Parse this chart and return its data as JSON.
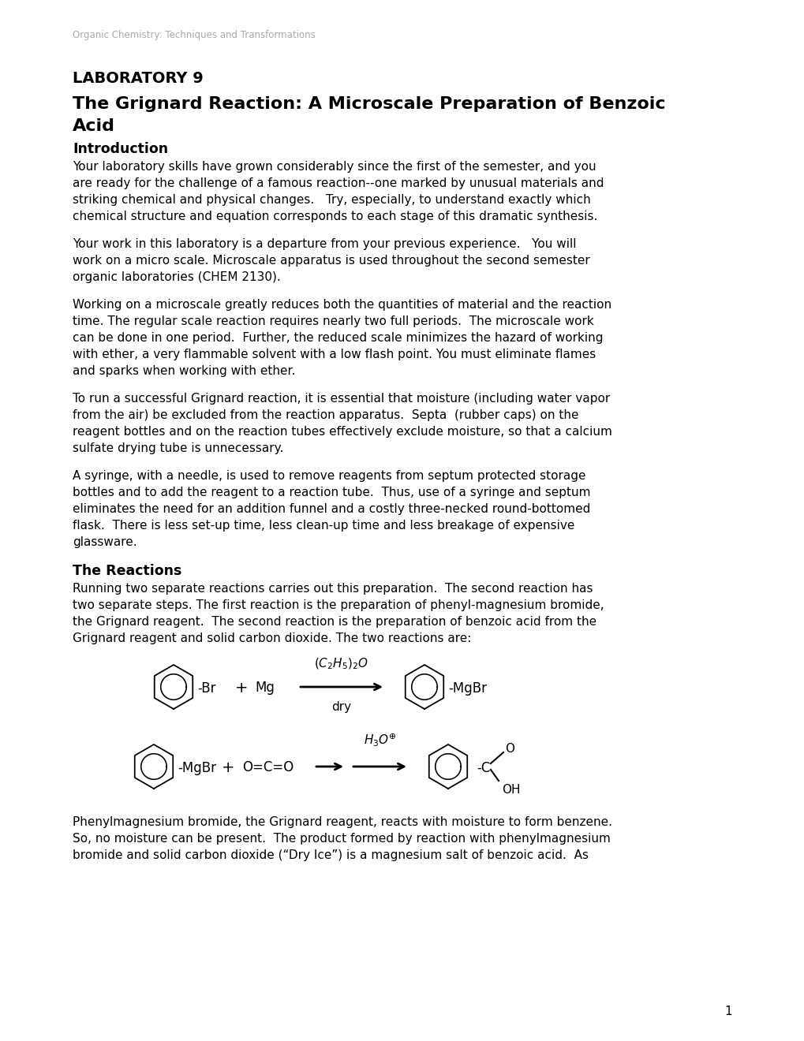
{
  "header_text": "Organic Chemistry: Techniques and Transformations",
  "lab_number": "LABORATORY 9",
  "section1_heading": "Introduction",
  "para1": "Your laboratory skills have grown considerably since the first of the semester, and you are ready for the challenge of a famous reaction--one marked by unusual materials and striking chemical and physical changes.   Try, especially, to understand exactly which chemical structure and equation corresponds to each stage of this dramatic synthesis.",
  "para2": "Your work in this laboratory is a departure from your previous experience.   You will work on a micro scale. Microscale apparatus is used throughout the second semester organic laboratories (CHEM 2130).",
  "para3": "Working on a microscale greatly reduces both the quantities of material and the reaction time. The regular scale reaction requires nearly two full periods.  The microscale work can be done in one period.  Further, the reduced scale minimizes the hazard of working with ether, a very flammable solvent with a low flash point. You must eliminate flames and sparks when working with ether.",
  "para4": "To run a successful Grignard reaction, it is essential that moisture (including water vapor from the air) be excluded from the reaction apparatus.  Septa  (rubber caps) on the reagent bottles and on the reaction tubes effectively exclude moisture, so that a calcium sulfate drying tube is unnecessary.",
  "para5": "A syringe, with a needle, is used to remove reagents from septum protected storage bottles and to add the reagent to a reaction tube.  Thus, use of a syringe and septum eliminates the need for an addition funnel and a costly three-necked round-bottomed flask.  There is less set-up time, less clean-up time and less breakage of expensive glassware.",
  "section2_heading": "The Reactions",
  "para6": "Running two separate reactions carries out this preparation.  The second reaction has two separate steps. The first reaction is the preparation of phenyl-magnesium bromide, the Grignard reagent.  The second reaction is the preparation of benzoic acid from the Grignard reagent and solid carbon dioxide. The two reactions are:",
  "para7": "Phenylmagnesium bromide, the Grignard reagent, reacts with moisture to form benzene. So, no moisture can be present.  The product formed by reaction with phenylmagnesium bromide and solid carbon dioxide (“Dry Ice”) is a magnesium salt of benzoic acid.  As",
  "page_number": "1",
  "bg_color": "#ffffff",
  "text_color": "#000000",
  "header_color": "#aaaaaa"
}
